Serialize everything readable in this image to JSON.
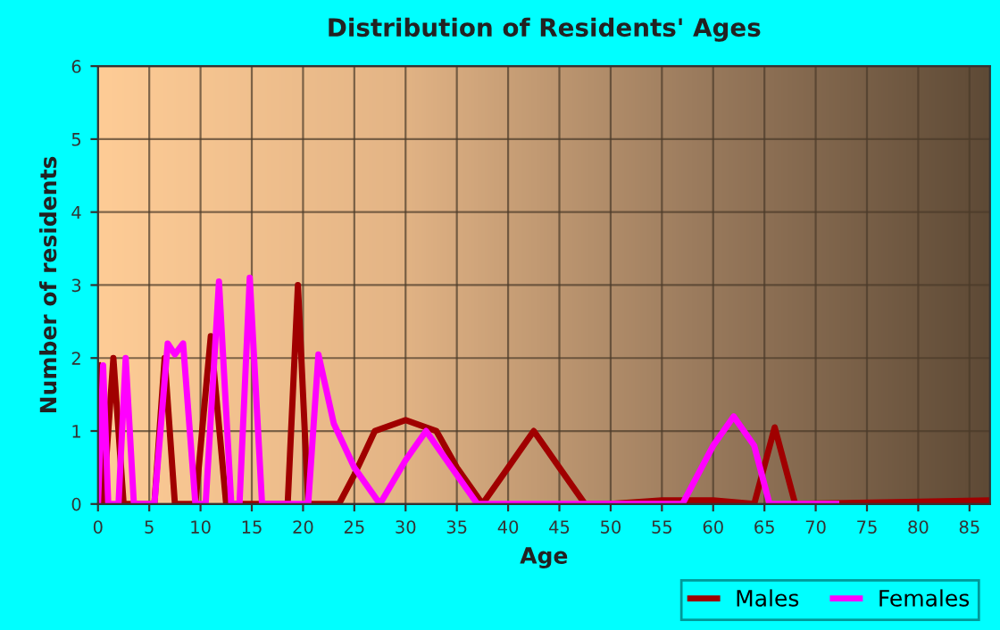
{
  "chart_data": {
    "type": "line",
    "title": "Distribution of Residents' Ages",
    "xlabel": "Age",
    "ylabel": "Number of residents",
    "xlim": [
      0,
      87
    ],
    "xticks": [
      0,
      5,
      10,
      15,
      20,
      25,
      30,
      35,
      40,
      45,
      50,
      55,
      60,
      65,
      70,
      75,
      80,
      85
    ],
    "ylim": [
      0,
      6
    ],
    "yticks": [
      0,
      1,
      2,
      3,
      4,
      5,
      6
    ],
    "grid": true,
    "legend": "bottom right",
    "series": [
      {
        "name": "Males",
        "color": "#a00000",
        "x": [
          0,
          0.5,
          1.5,
          2.5,
          5.5,
          6.5,
          7.5,
          9.5,
          11,
          12.5,
          18.5,
          19.5,
          20.5,
          23.5,
          25,
          27,
          30,
          33,
          35,
          37.5,
          40,
          42.5,
          45,
          47.5,
          50,
          55,
          60,
          64,
          66,
          68,
          87
        ],
        "values": [
          1.9,
          0,
          2.0,
          0,
          0,
          2.0,
          0,
          0,
          2.3,
          0,
          0,
          3.0,
          0,
          0,
          0.4,
          1.0,
          1.15,
          1.0,
          0.5,
          0,
          0.5,
          1.0,
          0.5,
          0,
          0,
          0.05,
          0.05,
          0,
          1.05,
          0,
          0.05
        ]
      },
      {
        "name": "Females",
        "color": "#ff00ff",
        "x": [
          0,
          0.5,
          1,
          2,
          2.7,
          3.5,
          5.5,
          6.8,
          7.5,
          8.3,
          9.5,
          10.5,
          11.8,
          13,
          13.8,
          14.8,
          16,
          20.5,
          21.5,
          23,
          25,
          27.5,
          30,
          32,
          34.5,
          37,
          40,
          47,
          57,
          60,
          62,
          64,
          65.5,
          72
        ],
        "values": [
          0,
          1.9,
          0,
          0,
          2.0,
          0,
          0,
          2.2,
          2.05,
          2.2,
          0,
          0,
          3.05,
          0,
          0,
          3.1,
          0,
          0,
          2.05,
          1.1,
          0.5,
          0,
          0.6,
          1.0,
          0.5,
          0,
          0,
          0,
          0,
          0.8,
          1.2,
          0.8,
          0,
          0
        ]
      }
    ]
  }
}
